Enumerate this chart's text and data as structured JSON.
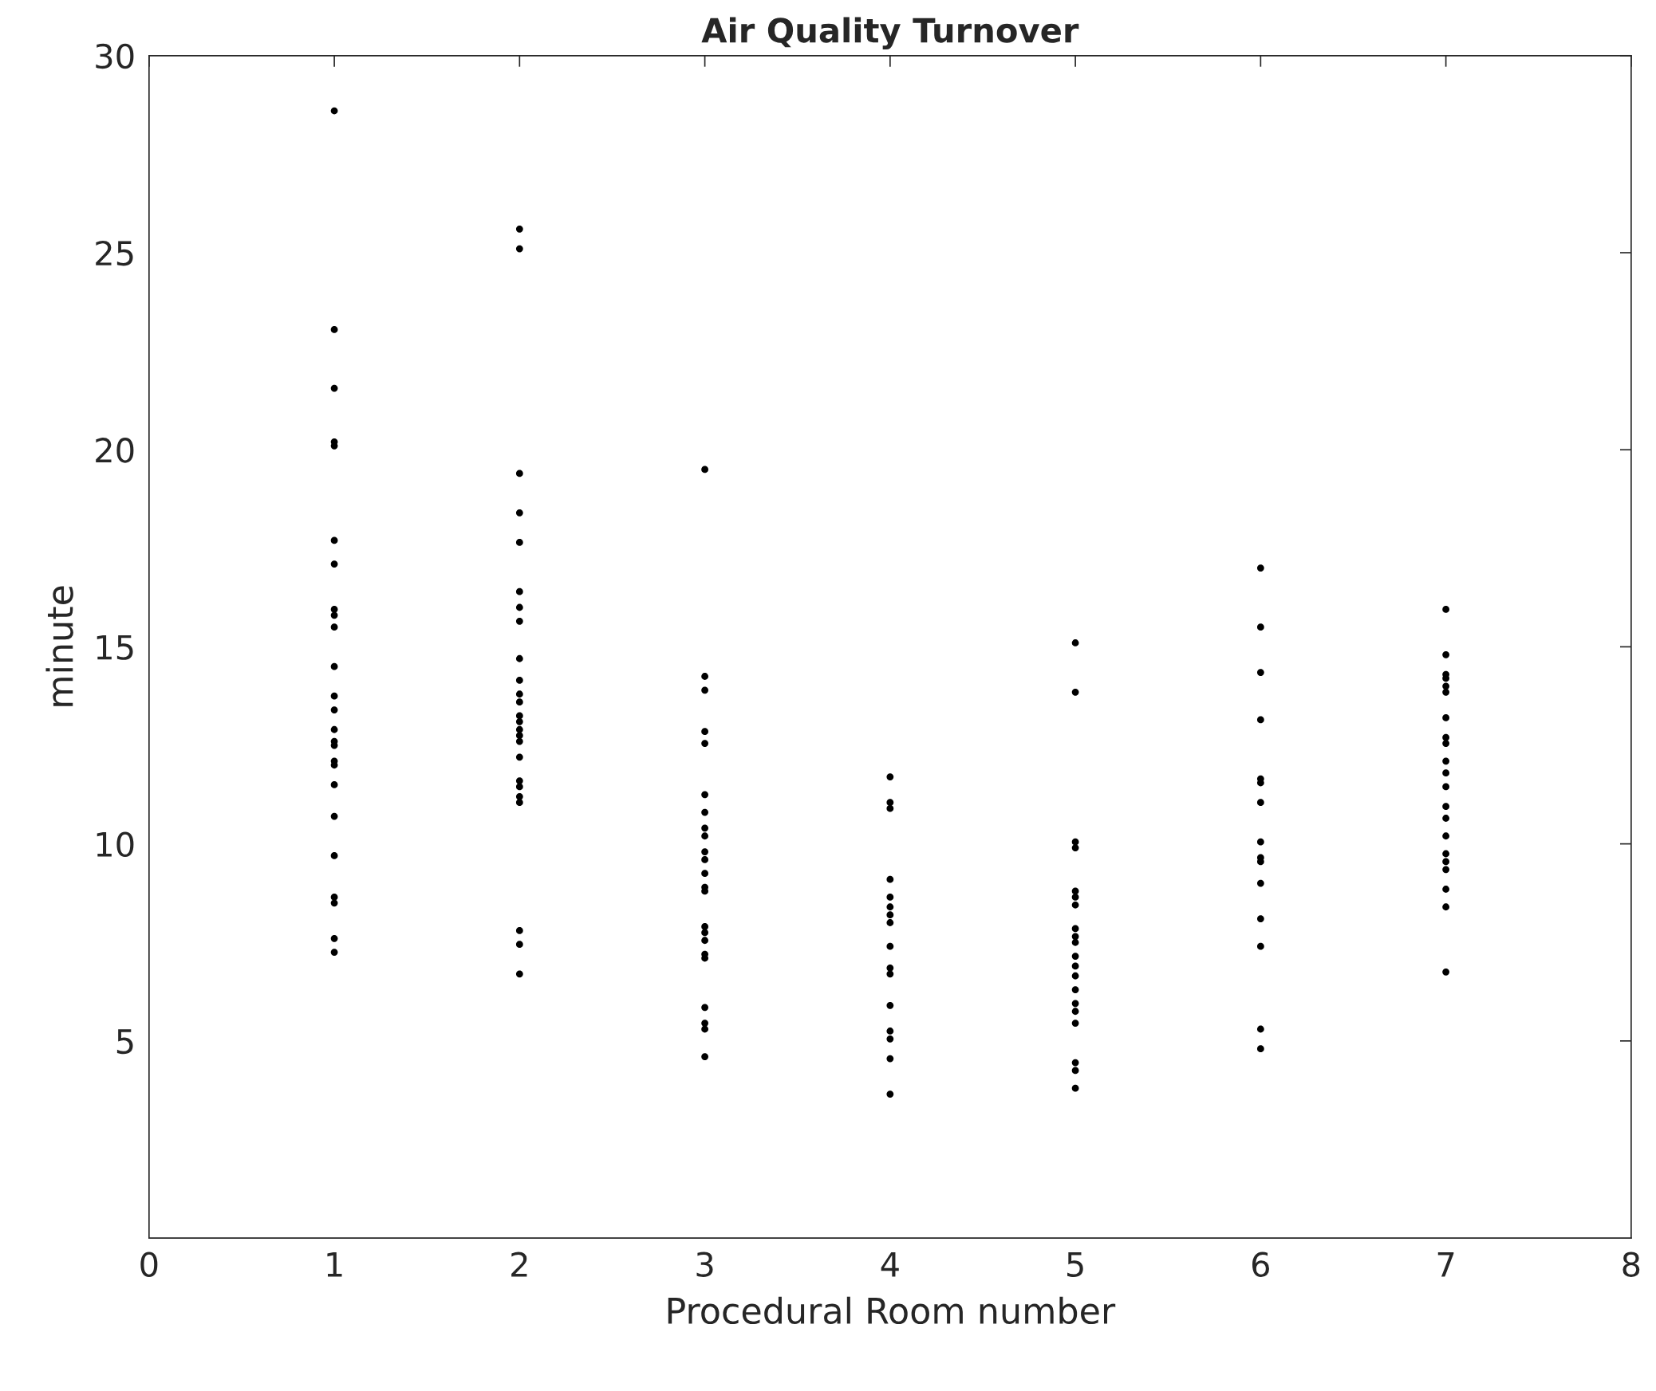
{
  "chart_data": {
    "type": "scatter",
    "title": "Air Quality Turnover",
    "xlabel": "Procedural Room number",
    "ylabel": "minute",
    "xlim": [
      0,
      8
    ],
    "xticks": [
      0,
      1,
      2,
      3,
      4,
      5,
      6,
      7,
      8
    ],
    "ylim": [
      0,
      30
    ],
    "yticks": [
      5,
      10,
      15,
      20,
      25,
      30
    ],
    "grid": false,
    "marker": "circle",
    "series": [
      {
        "color": "#000000",
        "x": [
          1,
          1,
          1,
          1,
          1,
          1,
          1,
          1,
          1,
          1,
          1,
          1,
          1,
          1,
          1,
          1,
          1,
          1,
          1,
          1,
          1,
          1,
          1,
          1,
          1,
          2,
          2,
          2,
          2,
          2,
          2,
          2,
          2,
          2,
          2,
          2,
          2,
          2,
          2,
          2,
          2,
          2,
          2,
          2,
          2,
          2,
          2,
          2,
          2,
          2,
          3,
          3,
          3,
          3,
          3,
          3,
          3,
          3,
          3,
          3,
          3,
          3,
          3,
          3,
          3,
          3,
          3,
          3,
          3,
          3,
          3,
          3,
          3,
          4,
          4,
          4,
          4,
          4,
          4,
          4,
          4,
          4,
          4,
          4,
          4,
          4,
          4,
          4,
          4,
          5,
          5,
          5,
          5,
          5,
          5,
          5,
          5,
          5,
          5,
          5,
          5,
          5,
          5,
          5,
          5,
          5,
          5,
          5,
          5,
          6,
          6,
          6,
          6,
          6,
          6,
          6,
          6,
          6,
          6,
          6,
          6,
          6,
          6,
          6,
          7,
          7,
          7,
          7,
          7,
          7,
          7,
          7,
          7,
          7,
          7,
          7,
          7,
          7,
          7,
          7,
          7,
          7,
          7,
          7,
          7
        ],
        "values": [
          28.6,
          23.05,
          21.56,
          20.2,
          20.1,
          17.7,
          17.1,
          15.95,
          15.8,
          15.5,
          14.5,
          13.75,
          13.4,
          12.9,
          12.6,
          12.5,
          12.1,
          12.0,
          11.5,
          10.7,
          9.7,
          8.65,
          8.5,
          7.6,
          7.25,
          25.6,
          25.1,
          19.4,
          18.4,
          17.65,
          16.4,
          16.0,
          15.65,
          14.7,
          14.15,
          13.8,
          13.6,
          13.25,
          13.1,
          12.9,
          12.75,
          12.6,
          12.2,
          11.6,
          11.45,
          11.2,
          11.05,
          7.8,
          7.45,
          6.7,
          19.5,
          14.25,
          13.9,
          12.85,
          12.55,
          11.25,
          10.8,
          10.4,
          10.2,
          9.8,
          9.6,
          9.25,
          8.9,
          8.8,
          7.9,
          7.75,
          7.55,
          7.2,
          7.1,
          5.85,
          5.45,
          5.3,
          4.6,
          11.7,
          11.05,
          10.9,
          9.1,
          8.65,
          8.4,
          8.2,
          8.0,
          7.4,
          6.85,
          6.7,
          5.9,
          5.25,
          5.05,
          4.55,
          3.65,
          15.1,
          13.85,
          10.05,
          9.9,
          8.8,
          8.65,
          8.45,
          7.85,
          7.65,
          7.5,
          7.15,
          6.9,
          6.65,
          6.3,
          5.95,
          5.75,
          5.45,
          4.45,
          4.25,
          3.8,
          17.0,
          15.5,
          14.35,
          13.15,
          11.65,
          11.55,
          11.05,
          10.05,
          9.65,
          9.55,
          9.0,
          8.1,
          7.4,
          5.3,
          4.8,
          15.95,
          14.8,
          14.3,
          14.2,
          14.0,
          13.85,
          13.2,
          12.7,
          12.55,
          12.1,
          11.8,
          11.45,
          10.95,
          10.65,
          10.2,
          9.75,
          9.55,
          9.35,
          8.85,
          8.4,
          6.75
        ]
      }
    ]
  }
}
